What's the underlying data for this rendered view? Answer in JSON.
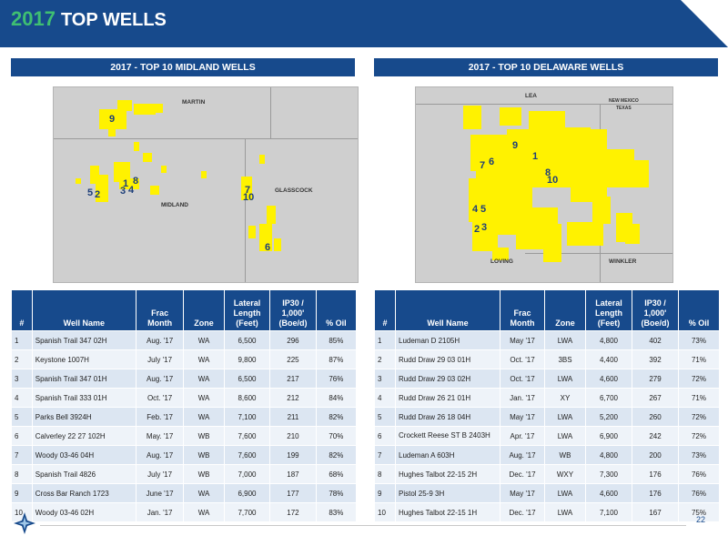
{
  "header": {
    "year": "2017",
    "title": "TOP WELLS"
  },
  "midland": {
    "panel_title": "2017 - TOP 10 MIDLAND WELLS",
    "map": {
      "county_martin": "MARTIN",
      "county_midland": "MIDLAND",
      "county_glasscock": "GLASSCOCK",
      "labels": [
        "9",
        "5",
        "2",
        "1",
        "3",
        "4",
        "8",
        "7",
        "10",
        "6"
      ]
    },
    "table": {
      "headers": [
        "#",
        "Well Name",
        "Frac Month",
        "Zone",
        "Lateral Length (Feet)",
        "IP30 / 1,000' (Boe/d)",
        "% Oil"
      ],
      "rows": [
        [
          "1",
          "Spanish Trail 347 02H",
          "Aug. '17",
          "WA",
          "6,500",
          "296",
          "85%"
        ],
        [
          "2",
          "Keystone 1007H",
          "July '17",
          "WA",
          "9,800",
          "225",
          "87%"
        ],
        [
          "3",
          "Spanish Trail 347 01H",
          "Aug. '17",
          "WA",
          "6,500",
          "217",
          "76%"
        ],
        [
          "4",
          "Spanish Trail 333 01H",
          "Oct. '17",
          "WA",
          "8,600",
          "212",
          "84%"
        ],
        [
          "5",
          "Parks Bell 3924H",
          "Feb. '17",
          "WA",
          "7,100",
          "211",
          "82%"
        ],
        [
          "6",
          "Calverley 22 27 102H",
          "May. '17",
          "WB",
          "7,600",
          "210",
          "70%"
        ],
        [
          "7",
          "Woody 03-46 04H",
          "Aug. '17",
          "WB",
          "7,600",
          "199",
          "82%"
        ],
        [
          "8",
          "Spanish Trail 4826",
          "July '17",
          "WB",
          "7,000",
          "187",
          "68%"
        ],
        [
          "9",
          "Cross Bar Ranch 1723",
          "June '17",
          "WA",
          "6,900",
          "177",
          "78%"
        ],
        [
          "10",
          "Woody 03-46 02H",
          "Jan. '17",
          "WA",
          "7,700",
          "172",
          "83%"
        ]
      ]
    }
  },
  "delaware": {
    "panel_title": "2017 - TOP 10 DELAWARE WELLS",
    "map": {
      "county_lea": "LEA",
      "state_nm": "NEW MEXICO",
      "state_tx": "TEXAS",
      "county_loving": "LOVING",
      "county_winkler": "WINKLER",
      "labels": [
        "9",
        "7",
        "6",
        "1",
        "8",
        "10",
        "4",
        "5",
        "2",
        "3"
      ]
    },
    "table": {
      "headers": [
        "#",
        "Well Name",
        "Frac Month",
        "Zone",
        "Lateral Length (Feet)",
        "IP30 / 1,000' (Boe/d)",
        "% Oil"
      ],
      "rows": [
        [
          "1",
          "Ludeman D 2105H",
          "May '17",
          "LWA",
          "4,800",
          "402",
          "73%"
        ],
        [
          "2",
          "Rudd Draw 29 03 01H",
          "Oct. '17",
          "3BS",
          "4,400",
          "392",
          "71%"
        ],
        [
          "3",
          "Rudd Draw 29 03 02H",
          "Oct. '17",
          "LWA",
          "4,600",
          "279",
          "72%"
        ],
        [
          "4",
          "Rudd Draw 26 21 01H",
          "Jan. '17",
          "XY",
          "6,700",
          "267",
          "71%"
        ],
        [
          "5",
          "Rudd Draw 26 18 04H",
          "May '17",
          "LWA",
          "5,200",
          "260",
          "72%"
        ],
        [
          "6",
          "Crockett Reese ST B 2403H",
          "Apr. '17",
          "LWA",
          "6,900",
          "242",
          "72%"
        ],
        [
          "7",
          "Ludeman A 603H",
          "Aug. '17",
          "WB",
          "4,800",
          "200",
          "73%"
        ],
        [
          "8",
          "Hughes Talbot 22-15 2H",
          "Dec. '17",
          "WXY",
          "7,300",
          "176",
          "76%"
        ],
        [
          "9",
          "Pistol 25-9 3H",
          "May '17",
          "LWA",
          "4,600",
          "176",
          "76%"
        ],
        [
          "10",
          "Hughes Talbot 22-15 1H",
          "Dec. '17",
          "LWA",
          "7,100",
          "167",
          "75%"
        ]
      ]
    }
  },
  "footer": {
    "page_number": "22"
  },
  "colors": {
    "brand_blue": "#174a8c",
    "accent_green": "#3fbf72",
    "highlight_yellow": "#fff200"
  }
}
